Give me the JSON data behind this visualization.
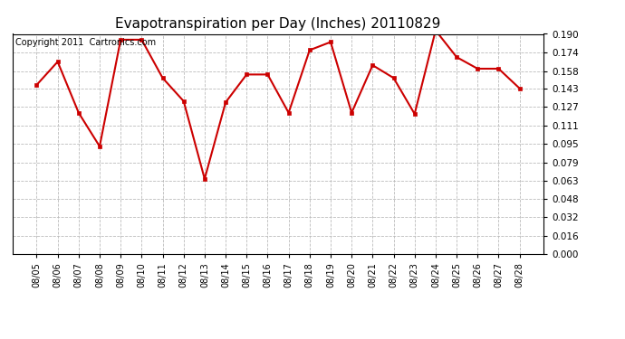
{
  "title": "Evapotranspiration per Day (Inches) 20110829",
  "copyright_text": "Copyright 2011  Cartronics.com",
  "dates": [
    "08/05",
    "08/06",
    "08/07",
    "08/08",
    "08/09",
    "08/10",
    "08/11",
    "08/12",
    "08/13",
    "08/14",
    "08/15",
    "08/16",
    "08/17",
    "08/18",
    "08/19",
    "08/20",
    "08/21",
    "08/22",
    "08/23",
    "08/24",
    "08/25",
    "08/26",
    "08/27",
    "08/28"
  ],
  "values": [
    0.146,
    0.166,
    0.122,
    0.093,
    0.185,
    0.185,
    0.152,
    0.132,
    0.065,
    0.131,
    0.155,
    0.155,
    0.122,
    0.176,
    0.183,
    0.122,
    0.163,
    0.152,
    0.121,
    0.193,
    0.17,
    0.16,
    0.16,
    0.143
  ],
  "ylim": [
    0.0,
    0.19
  ],
  "yticks": [
    0.0,
    0.016,
    0.032,
    0.048,
    0.063,
    0.079,
    0.095,
    0.111,
    0.127,
    0.143,
    0.158,
    0.174,
    0.19
  ],
  "line_color": "#cc0000",
  "marker": "s",
  "marker_size": 2.5,
  "bg_color": "#ffffff",
  "grid_color": "#bbbbbb",
  "title_fontsize": 11,
  "copyright_fontsize": 7
}
